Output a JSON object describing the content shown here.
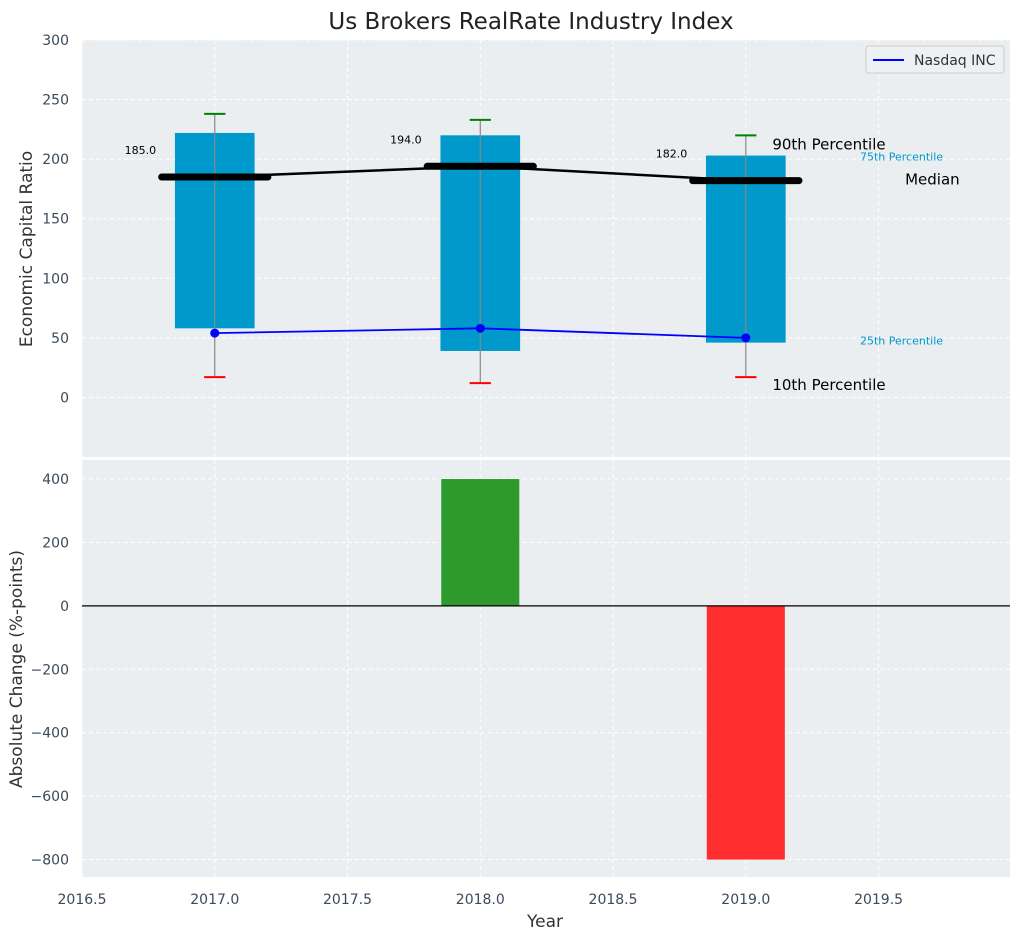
{
  "chart_data": {
    "type": "bar",
    "title": "Us Brokers RealRate Industry Index",
    "colors": {
      "panel_bg": "#eaeef0",
      "grid": "#ffffff",
      "bar": "#0099cc",
      "whisker": "#888888",
      "p90_cap": "#008000",
      "p10_cap": "#ff0000",
      "median": "#000000",
      "company": "#0000ff",
      "positive": "#2e9a2e",
      "negative": "#ff2e2e",
      "text": "#333333",
      "tick": "#3a4a5c"
    },
    "top_panel": {
      "ylabel": "Economic Capital Ratio",
      "ylim": [
        -50,
        300
      ],
      "yticks": [
        "0",
        "50",
        "100",
        "150",
        "200",
        "250",
        "300"
      ],
      "ytick_values": [
        0,
        50,
        100,
        150,
        200,
        250,
        300
      ],
      "x": [
        2017.0,
        2018.0,
        2019.0
      ],
      "percentile_bars": [
        {
          "year": 2017.0,
          "p10": 17,
          "p25": 58,
          "median": 185.0,
          "p75": 222,
          "p90": 238
        },
        {
          "year": 2018.0,
          "p10": 12,
          "p25": 39,
          "median": 194.0,
          "p75": 220,
          "p90": 233
        },
        {
          "year": 2019.0,
          "p10": 17,
          "p25": 46,
          "median": 182.0,
          "p75": 203,
          "p90": 220
        }
      ],
      "median_labels": [
        "185.0",
        "194.0",
        "182.0"
      ],
      "company_series": {
        "name": "Nasdaq INC",
        "values": [
          54,
          58,
          50
        ]
      },
      "legend": {
        "placement": "top-right",
        "entries": [
          "Nasdaq INC"
        ]
      },
      "annotations": {
        "p90": "90th Percentile",
        "p75": "75th Percentile",
        "median": "Median",
        "p25": "25th Percentile",
        "p10": "10th Percentile"
      }
    },
    "bottom_panel": {
      "type": "bar",
      "ylabel": "Absolute Change (%-points)",
      "xlabel": "Year",
      "ylim": [
        -855,
        460
      ],
      "yticks": [
        "400",
        "200",
        "0",
        "−200",
        "−400",
        "−600",
        "−800"
      ],
      "ytick_values": [
        400,
        200,
        0,
        -200,
        -400,
        -600,
        -800
      ],
      "x": [
        2018.0,
        2019.0
      ],
      "values": [
        400,
        -800
      ]
    },
    "xaxis": {
      "xlim": [
        2016.5,
        2019.995
      ],
      "ticks": [
        "2016.5",
        "2017.0",
        "2017.5",
        "2018.0",
        "2018.5",
        "2019.0",
        "2019.5"
      ],
      "tick_values": [
        2016.5,
        2017.0,
        2017.5,
        2018.0,
        2018.5,
        2019.0,
        2019.5
      ]
    },
    "grid": true
  }
}
